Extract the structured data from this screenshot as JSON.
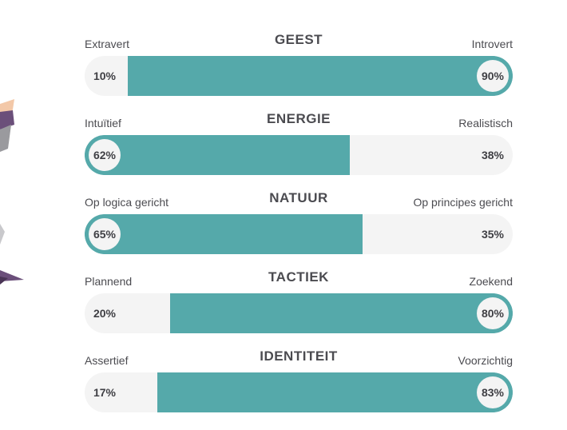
{
  "colors": {
    "accent": "#55a9aa",
    "track": "#f4f4f4",
    "text": "#4b4b50"
  },
  "traits": [
    {
      "title": "GEEST",
      "left_label": "Extravert",
      "right_label": "Introvert",
      "left_pct": "10%",
      "right_pct": "90%",
      "left_value": 10,
      "right_value": 90,
      "dominant": "right"
    },
    {
      "title": "ENERGIE",
      "left_label": "Intuïtief",
      "right_label": "Realistisch",
      "left_pct": "62%",
      "right_pct": "38%",
      "left_value": 62,
      "right_value": 38,
      "dominant": "left"
    },
    {
      "title": "NATUUR",
      "left_label": "Op logica gericht",
      "right_label": "Op principes gericht",
      "left_pct": "65%",
      "right_pct": "35%",
      "left_value": 65,
      "right_value": 35,
      "dominant": "left"
    },
    {
      "title": "TACTIEK",
      "left_label": "Plannend",
      "right_label": "Zoekend",
      "left_pct": "20%",
      "right_pct": "80%",
      "left_value": 20,
      "right_value": 80,
      "dominant": "right"
    },
    {
      "title": "IDENTITEIT",
      "left_label": "Assertief",
      "right_label": "Voorzichtig",
      "left_pct": "17%",
      "right_pct": "83%",
      "left_value": 17,
      "right_value": 83,
      "dominant": "right"
    }
  ]
}
